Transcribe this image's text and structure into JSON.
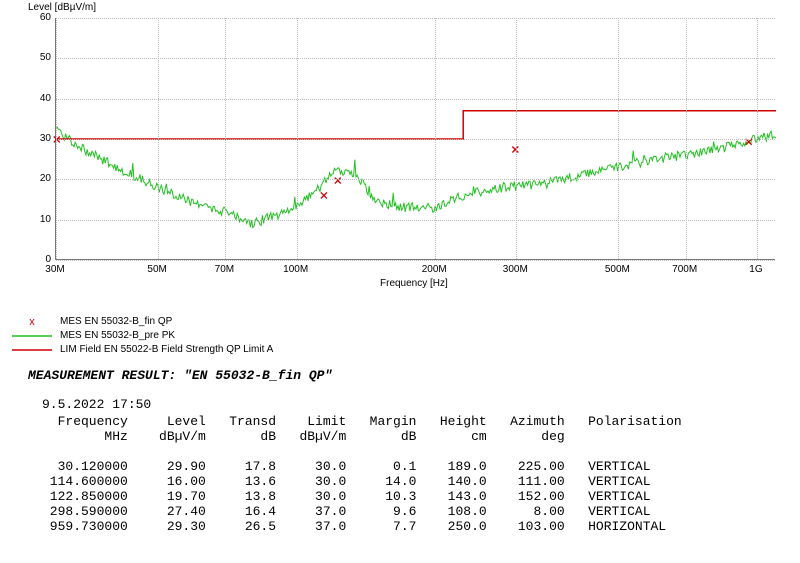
{
  "chart": {
    "type": "line",
    "y_axis_label": "Level [dBµV/m]",
    "x_axis_label": "Frequency [Hz]",
    "background_color": "#ffffff",
    "grid_color": "#bbbbbb",
    "axis_color": "#777777",
    "label_fontsize": 10,
    "ylim": [
      0,
      60
    ],
    "yticks": [
      0,
      10,
      20,
      30,
      40,
      50,
      60
    ],
    "xscale": "log",
    "xlim_hz": [
      30000000,
      1100000000
    ],
    "xticks": [
      {
        "hz": 30000000,
        "label": "30M"
      },
      {
        "hz": 50000000,
        "label": "50M"
      },
      {
        "hz": 70000000,
        "label": "70M"
      },
      {
        "hz": 100000000,
        "label": "100M"
      },
      {
        "hz": 200000000,
        "label": "200M"
      },
      {
        "hz": 300000000,
        "label": "300M"
      },
      {
        "hz": 500000000,
        "label": "500M"
      },
      {
        "hz": 700000000,
        "label": "700M"
      },
      {
        "hz": 1000000000,
        "label": "1G"
      }
    ],
    "limit_line": {
      "color": "#d00000",
      "width": 1.5,
      "segments": [
        {
          "x_hz": 30000000,
          "y": 30
        },
        {
          "x_hz": 230000000,
          "y": 30
        },
        {
          "x_hz": 230000000,
          "y": 37
        },
        {
          "x_hz": 1100000000,
          "y": 37
        }
      ]
    },
    "markers": {
      "color": "#d00000",
      "symbol": "x",
      "points": [
        {
          "x_hz": 30120000,
          "y": 29.9
        },
        {
          "x_hz": 114600000,
          "y": 16.0
        },
        {
          "x_hz": 122850000,
          "y": 19.7
        },
        {
          "x_hz": 298590000,
          "y": 27.4
        },
        {
          "x_hz": 959730000,
          "y": 29.3
        }
      ]
    },
    "trace": {
      "color": "#22c022",
      "width": 1,
      "noise_amplitude": 1.2,
      "baseline": [
        {
          "x_hz": 30000000,
          "y": 32
        },
        {
          "x_hz": 35000000,
          "y": 27
        },
        {
          "x_hz": 42000000,
          "y": 22
        },
        {
          "x_hz": 50000000,
          "y": 18
        },
        {
          "x_hz": 60000000,
          "y": 14
        },
        {
          "x_hz": 70000000,
          "y": 12
        },
        {
          "x_hz": 80000000,
          "y": 9
        },
        {
          "x_hz": 90000000,
          "y": 11
        },
        {
          "x_hz": 100000000,
          "y": 13
        },
        {
          "x_hz": 112000000,
          "y": 18
        },
        {
          "x_hz": 122000000,
          "y": 22
        },
        {
          "x_hz": 135000000,
          "y": 21
        },
        {
          "x_hz": 150000000,
          "y": 14
        },
        {
          "x_hz": 175000000,
          "y": 13
        },
        {
          "x_hz": 200000000,
          "y": 13
        },
        {
          "x_hz": 230000000,
          "y": 16
        },
        {
          "x_hz": 280000000,
          "y": 18
        },
        {
          "x_hz": 350000000,
          "y": 19
        },
        {
          "x_hz": 450000000,
          "y": 22
        },
        {
          "x_hz": 600000000,
          "y": 25
        },
        {
          "x_hz": 800000000,
          "y": 27
        },
        {
          "x_hz": 1000000000,
          "y": 30
        },
        {
          "x_hz": 1100000000,
          "y": 31
        }
      ]
    }
  },
  "legend": {
    "items": [
      {
        "style": "marker",
        "color": "#d00000",
        "label": "MES  EN 55032-B_fin QP"
      },
      {
        "style": "line",
        "color": "#22c022",
        "label": "MES  EN 55032-B_pre PK"
      },
      {
        "style": "line",
        "color": "#d00000",
        "label": "LIM  Field EN 55022-B      Field Strength QP Limit A"
      }
    ]
  },
  "result": {
    "title_prefix": "MEASUREMENT RESULT:",
    "title_value": "\"EN 55032-B_fin QP\"",
    "timestamp": "9.5.2022   17:50"
  },
  "table": {
    "header1": "  Frequency     Level   Transd    Limit   Margin   Height   Azimuth   Polarisation",
    "header2": "        MHz    dBµV/m       dB   dBµV/m       dB       cm       deg",
    "rows": [
      "  30.120000     29.90     17.8     30.0      0.1    189.0    225.00   VERTICAL",
      " 114.600000     16.00     13.6     30.0     14.0    140.0    111.00   VERTICAL",
      " 122.850000     19.70     13.8     30.0     10.3    143.0    152.00   VERTICAL",
      " 298.590000     27.40     16.4     37.0      9.6    108.0      8.00   VERTICAL",
      " 959.730000     29.30     26.5     37.0      7.7    250.0    103.00   HORIZONTAL"
    ]
  }
}
